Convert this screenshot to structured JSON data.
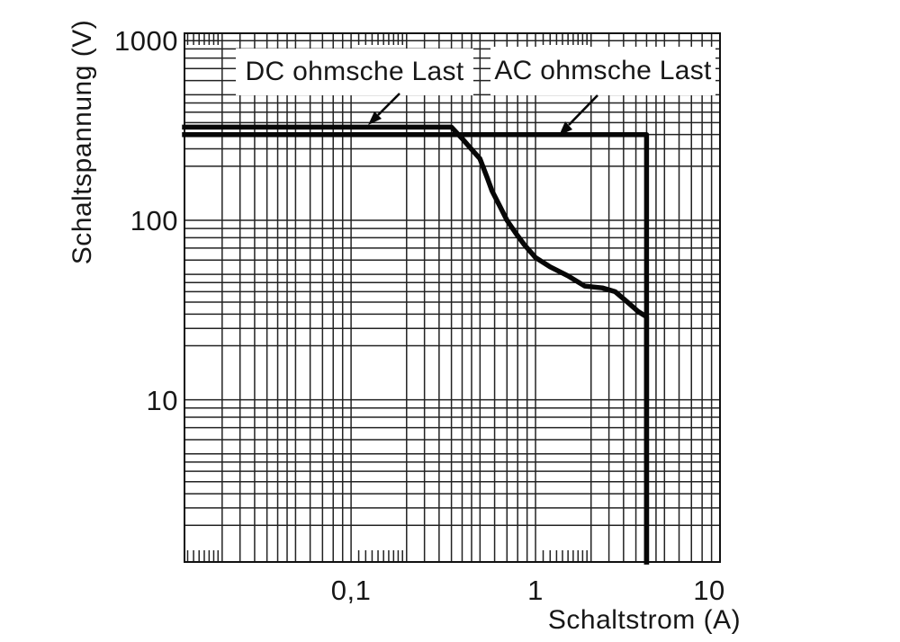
{
  "figure": {
    "background": "#ffffff",
    "grid_color": "#222222",
    "curve_color": "#070707",
    "text_color": "#171717"
  },
  "chart_data": {
    "type": "line",
    "x_axis": {
      "label": "Schaltstrom (A)",
      "scale": "log",
      "min": 0.0125,
      "max": 10,
      "ticks": [
        {
          "value": 0.1,
          "label": "0,1"
        },
        {
          "value": 1,
          "label": "1"
        },
        {
          "value": 10,
          "label": "10"
        }
      ]
    },
    "y_axis": {
      "label": "Schaltspannung (V)",
      "scale": "log",
      "min": 1.25,
      "max": 1100,
      "ticks": [
        {
          "value": 10,
          "label": "10"
        },
        {
          "value": 100,
          "label": "100"
        },
        {
          "value": 1000,
          "label": "1000"
        }
      ]
    },
    "grid": {
      "style": "full log-log grid, mantissa lines 1-9 plus half-steps 2.5/3.5/4.5 per decade",
      "fine_ticks": "short border ticks at mantissa 1.1-1.9 on top and bottom edges"
    },
    "legend_position": "inside top, white boxes with arrows pointing to curves",
    "series": [
      {
        "name": "DC ohmsche Last",
        "points": [
          [
            0.0125,
            330
          ],
          [
            0.35,
            330
          ],
          [
            0.4,
            285
          ],
          [
            0.44,
            255
          ],
          [
            0.5,
            220
          ],
          [
            0.55,
            170
          ],
          [
            0.58,
            146
          ],
          [
            0.64,
            120
          ],
          [
            0.7,
            100
          ],
          [
            0.78,
            85
          ],
          [
            0.87,
            73
          ],
          [
            1.0,
            62
          ],
          [
            1.2,
            55
          ],
          [
            1.5,
            49
          ],
          [
            1.85,
            43
          ],
          [
            2.3,
            42
          ],
          [
            2.7,
            40
          ],
          [
            3.15,
            35
          ],
          [
            3.6,
            31
          ],
          [
            4.0,
            29
          ],
          [
            4.0,
            1.25
          ]
        ]
      },
      {
        "name": "AC ohmsche Last",
        "points": [
          [
            0.0125,
            300
          ],
          [
            4.0,
            300
          ],
          [
            4.0,
            1.25
          ]
        ]
      }
    ]
  }
}
